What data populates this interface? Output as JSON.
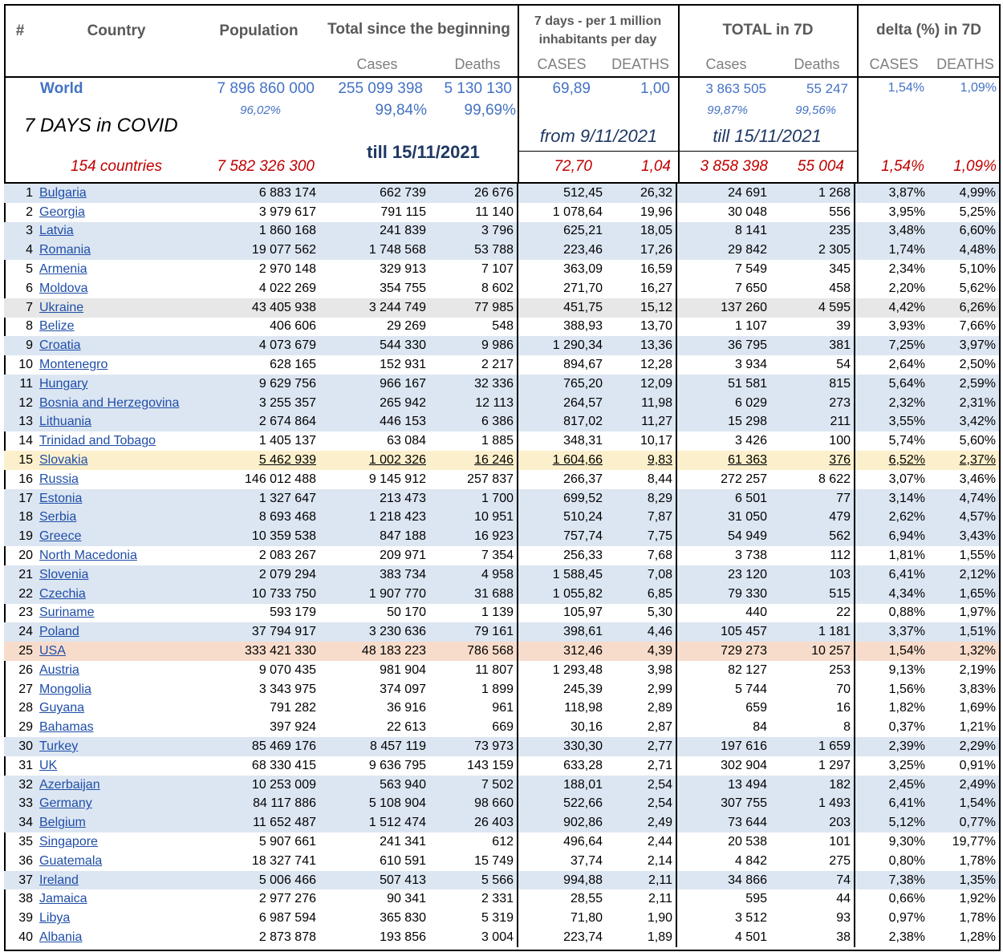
{
  "header": {
    "hash": "#",
    "country": "Country",
    "population": "Population",
    "total": "Total since the beginning",
    "per_million": "7 days - per 1 million inhabitants per day",
    "total_7d": "TOTAL in 7D",
    "delta": "delta (%) in 7D"
  },
  "subheader": [
    "Cases",
    "Deaths",
    "CASES",
    "DEATHS",
    "Cases",
    "Deaths",
    "CASES",
    "DEATHS"
  ],
  "world": {
    "label": "World",
    "values": [
      "7 896 860 000",
      "255 099 398",
      "5 130 130",
      "69,89",
      "1,00",
      "3 863 505",
      "55 247",
      "1,54%",
      "1,09%"
    ],
    "shares": [
      "96,02%",
      "99,84%",
      "99,69%",
      "99,87%",
      "99,56%"
    ]
  },
  "title": "7 DAYS in COVID",
  "till": "till 15/11/2021",
  "period_from": "from 9/11/2021",
  "period_till": "till 15/11/2021",
  "summary": {
    "label": "154 countries",
    "values": [
      "7 582 326 300",
      "72,70",
      "1,04",
      "3 858 398",
      "55 004",
      "1,54%",
      "1,09%"
    ]
  },
  "rows": [
    [
      1,
      "Bulgaria",
      "6 883 174",
      "662 739",
      "26 676",
      "512,45",
      "26,32",
      "24 691",
      "1 268",
      "3,87%",
      "4,99%"
    ],
    [
      2,
      "Georgia",
      "3 979 617",
      "791 115",
      "11 140",
      "1 078,64",
      "19,96",
      "30 048",
      "556",
      "3,95%",
      "5,25%"
    ],
    [
      3,
      "Latvia",
      "1 860 168",
      "241 839",
      "3 796",
      "625,21",
      "18,05",
      "8 141",
      "235",
      "3,48%",
      "6,60%"
    ],
    [
      4,
      "Romania",
      "19 077 562",
      "1 748 568",
      "53 788",
      "223,46",
      "17,26",
      "29 842",
      "2 305",
      "1,74%",
      "4,48%"
    ],
    [
      5,
      "Armenia",
      "2 970 148",
      "329 913",
      "7 107",
      "363,09",
      "16,59",
      "7 549",
      "345",
      "2,34%",
      "5,10%"
    ],
    [
      6,
      "Moldova",
      "4 022 269",
      "354 755",
      "8 602",
      "271,70",
      "16,27",
      "7 650",
      "458",
      "2,20%",
      "5,62%"
    ],
    [
      7,
      "Ukraine",
      "43 405 938",
      "3 244 749",
      "77 985",
      "451,75",
      "15,12",
      "137 260",
      "4 595",
      "4,42%",
      "6,26%"
    ],
    [
      8,
      "Belize",
      "406 606",
      "29 269",
      "548",
      "388,93",
      "13,70",
      "1 107",
      "39",
      "3,93%",
      "7,66%"
    ],
    [
      9,
      "Croatia",
      "4 073 679",
      "544 330",
      "9 986",
      "1 290,34",
      "13,36",
      "36 795",
      "381",
      "7,25%",
      "3,97%"
    ],
    [
      10,
      "Montenegro",
      "628 165",
      "152 931",
      "2 217",
      "894,67",
      "12,28",
      "3 934",
      "54",
      "2,64%",
      "2,50%"
    ],
    [
      11,
      "Hungary",
      "9 629 756",
      "966 167",
      "32 336",
      "765,20",
      "12,09",
      "51 581",
      "815",
      "5,64%",
      "2,59%"
    ],
    [
      12,
      "Bosnia and Herzegovina",
      "3 255 357",
      "265 942",
      "12 113",
      "264,57",
      "11,98",
      "6 029",
      "273",
      "2,32%",
      "2,31%"
    ],
    [
      13,
      "Lithuania",
      "2 674 864",
      "446 153",
      "6 386",
      "817,02",
      "11,27",
      "15 298",
      "211",
      "3,55%",
      "3,42%"
    ],
    [
      14,
      "Trinidad and Tobago",
      "1 405 137",
      "63 084",
      "1 885",
      "348,31",
      "10,17",
      "3 426",
      "100",
      "5,74%",
      "5,60%"
    ],
    [
      15,
      "Slovakia",
      "5 462 939",
      "1 002 326",
      "16 246",
      "1 604,66",
      "9,83",
      "61 363",
      "376",
      "6,52%",
      "2,37%"
    ],
    [
      16,
      "Russia",
      "146 012 488",
      "9 145 912",
      "257 837",
      "266,37",
      "8,44",
      "272 257",
      "8 622",
      "3,07%",
      "3,46%"
    ],
    [
      17,
      "Estonia",
      "1 327 647",
      "213 473",
      "1 700",
      "699,52",
      "8,29",
      "6 501",
      "77",
      "3,14%",
      "4,74%"
    ],
    [
      18,
      "Serbia",
      "8 693 468",
      "1 218 423",
      "10 951",
      "510,24",
      "7,87",
      "31 050",
      "479",
      "2,62%",
      "4,57%"
    ],
    [
      19,
      "Greece",
      "10 359 538",
      "847 188",
      "16 923",
      "757,74",
      "7,75",
      "54 949",
      "562",
      "6,94%",
      "3,43%"
    ],
    [
      20,
      "North Macedonia",
      "2 083 267",
      "209 971",
      "7 354",
      "256,33",
      "7,68",
      "3 738",
      "112",
      "1,81%",
      "1,55%"
    ],
    [
      21,
      "Slovenia",
      "2 079 294",
      "383 734",
      "4 958",
      "1 588,45",
      "7,08",
      "23 120",
      "103",
      "6,41%",
      "2,12%"
    ],
    [
      22,
      "Czechia",
      "10 733 750",
      "1 907 770",
      "31 688",
      "1 055,82",
      "6,85",
      "79 330",
      "515",
      "4,34%",
      "1,65%"
    ],
    [
      23,
      "Suriname",
      "593 179",
      "50 170",
      "1 139",
      "105,97",
      "5,30",
      "440",
      "22",
      "0,88%",
      "1,97%"
    ],
    [
      24,
      "Poland",
      "37 794 917",
      "3 230 636",
      "79 161",
      "398,61",
      "4,46",
      "105 457",
      "1 181",
      "3,37%",
      "1,51%"
    ],
    [
      25,
      "USA",
      "333 421 330",
      "48 183 223",
      "786 568",
      "312,46",
      "4,39",
      "729 273",
      "10 257",
      "1,54%",
      "1,32%"
    ],
    [
      26,
      "Austria",
      "9 070 435",
      "981 904",
      "11 807",
      "1 293,48",
      "3,98",
      "82 127",
      "253",
      "9,13%",
      "2,19%"
    ],
    [
      27,
      "Mongolia",
      "3 343 975",
      "374 097",
      "1 899",
      "245,39",
      "2,99",
      "5 744",
      "70",
      "1,56%",
      "3,83%"
    ],
    [
      28,
      "Guyana",
      "791 282",
      "36 916",
      "961",
      "118,98",
      "2,89",
      "659",
      "16",
      "1,82%",
      "1,69%"
    ],
    [
      29,
      "Bahamas",
      "397 924",
      "22 613",
      "669",
      "30,16",
      "2,87",
      "84",
      "8",
      "0,37%",
      "1,21%"
    ],
    [
      30,
      "Turkey",
      "85 469 176",
      "8 457 119",
      "73 973",
      "330,30",
      "2,77",
      "197 616",
      "1 659",
      "2,39%",
      "2,29%"
    ],
    [
      31,
      "UK",
      "68 330 415",
      "9 636 795",
      "143 159",
      "633,28",
      "2,71",
      "302 904",
      "1 297",
      "3,25%",
      "0,91%"
    ],
    [
      32,
      "Azerbaijan",
      "10 253 009",
      "563 940",
      "7 502",
      "188,01",
      "2,54",
      "13 494",
      "182",
      "2,45%",
      "2,49%"
    ],
    [
      33,
      "Germany",
      "84 117 886",
      "5 108 904",
      "98 660",
      "522,66",
      "2,54",
      "307 755",
      "1 493",
      "6,41%",
      "1,54%"
    ],
    [
      34,
      "Belgium",
      "11 652 487",
      "1 512 474",
      "26 403",
      "902,86",
      "2,49",
      "73 644",
      "203",
      "5,12%",
      "0,77%"
    ],
    [
      35,
      "Singapore",
      "5 907 661",
      "241 341",
      "612",
      "496,64",
      "2,44",
      "20 538",
      "101",
      "9,30%",
      "19,77%"
    ],
    [
      36,
      "Guatemala",
      "18 327 741",
      "610 591",
      "15 749",
      "37,74",
      "2,14",
      "4 842",
      "275",
      "0,80%",
      "1,78%"
    ],
    [
      37,
      "Ireland",
      "5 006 466",
      "507 413",
      "5 566",
      "994,88",
      "2,11",
      "34 866",
      "74",
      "7,38%",
      "1,35%"
    ],
    [
      38,
      "Jamaica",
      "2 977 276",
      "90 341",
      "2 331",
      "28,55",
      "2,11",
      "595",
      "44",
      "0,66%",
      "1,92%"
    ],
    [
      39,
      "Libya",
      "6 987 594",
      "365 830",
      "5 319",
      "71,80",
      "1,90",
      "3 512",
      "93",
      "0,97%",
      "1,78%"
    ],
    [
      40,
      "Albania",
      "2 873 878",
      "193 856",
      "3 004",
      "223,74",
      "1,89",
      "4 501",
      "38",
      "2,38%",
      "1,28%"
    ]
  ]
}
